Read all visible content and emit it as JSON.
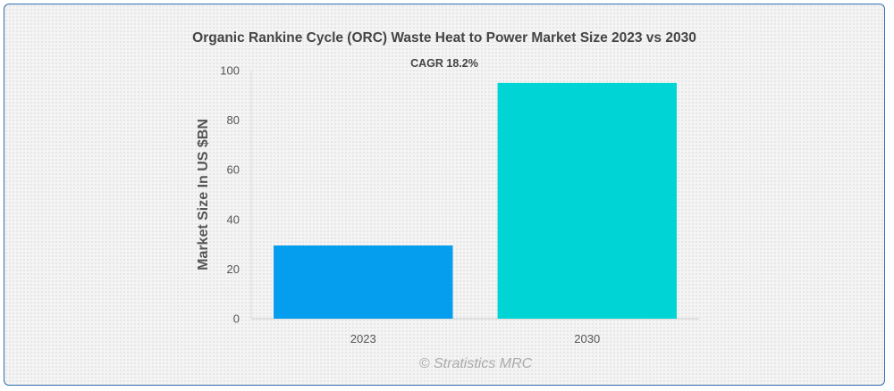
{
  "chart_data": {
    "type": "bar",
    "title": "Organic Rankine Cycle (ORC) Waste Heat to Power Market Size 2023 vs 2030",
    "subtitle": "CAGR 18.2%",
    "ylabel": "Market Size In US $BN",
    "xlabel": "",
    "categories": [
      "2023",
      "2030"
    ],
    "values": [
      29.5,
      95
    ],
    "colors": [
      "#059ded",
      "#00d4d4"
    ],
    "ylim": [
      0,
      100
    ],
    "yticks": [
      "0",
      "20",
      "40",
      "60",
      "80",
      "100"
    ],
    "grid": false,
    "legend": false
  },
  "credit": "© Stratistics MRC"
}
